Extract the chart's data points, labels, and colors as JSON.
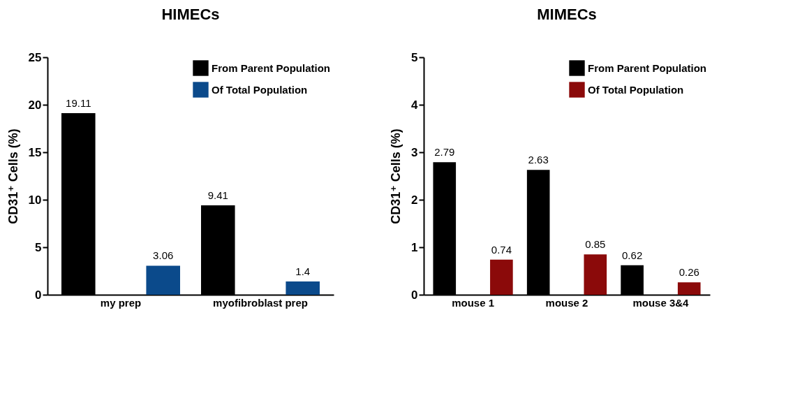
{
  "chart_data": [
    {
      "type": "bar",
      "title": "HIMECs",
      "ylabel": "CD31⁺ Cells (%)",
      "categories": [
        "my prep",
        "myofibroblast prep"
      ],
      "series": [
        {
          "name": "From Parent Population",
          "color": "#000000",
          "values": [
            19.11,
            9.41
          ]
        },
        {
          "name": "Of Total Population",
          "color": "#0b4a8b",
          "values": [
            3.06,
            1.4
          ]
        }
      ],
      "ylim": [
        0,
        25
      ],
      "yticks": [
        0,
        5,
        10,
        15,
        20,
        25
      ],
      "grid": false,
      "legend": "top right",
      "data_labels": true
    },
    {
      "type": "bar",
      "title": "MIMECs",
      "ylabel": "CD31⁺ Cells (%)",
      "categories": [
        "mouse 1",
        "mouse 2",
        "mouse 3&4"
      ],
      "series": [
        {
          "name": "From Parent Population",
          "color": "#000000",
          "values": [
            2.79,
            2.63,
            0.62
          ]
        },
        {
          "name": "Of Total Population",
          "color": "#8b0a0a",
          "values": [
            0.74,
            0.85,
            0.26
          ]
        }
      ],
      "ylim": [
        0,
        5
      ],
      "yticks": [
        0,
        1,
        2,
        3,
        4,
        5
      ],
      "grid": false,
      "legend": "top right",
      "data_labels": true
    }
  ]
}
